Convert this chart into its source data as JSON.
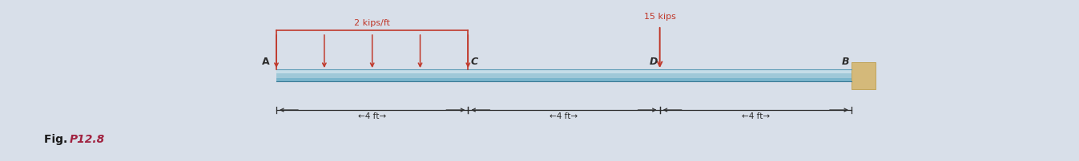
{
  "bg_color": "#d8dfe9",
  "fig_width": 13.47,
  "fig_height": 2.02,
  "beam_color_top": "#c5dde8",
  "beam_color_mid": "#9fc8d8",
  "beam_color_bot": "#7ab5cc",
  "wall_color": "#d4b97a",
  "wall_edge_color": "#b8963e",
  "dist_load_color": "#c0392b",
  "point_load_color": "#c0392b",
  "dist_load_label": "2 kips/ft",
  "point_load_label": "15 kips",
  "label_color": "#2c2c2c",
  "dim_color": "#2c2c2c",
  "fig_label_color_plain": "#1a1a1a",
  "fig_label_color_italic": "#a0213f",
  "fig_label_italic": "P12.8",
  "n_dist_arrows": 5,
  "dim_label_1": "←4 ft→",
  "dim_label_2": "←4 ft→",
  "dim_label_3": "←4 ft→"
}
